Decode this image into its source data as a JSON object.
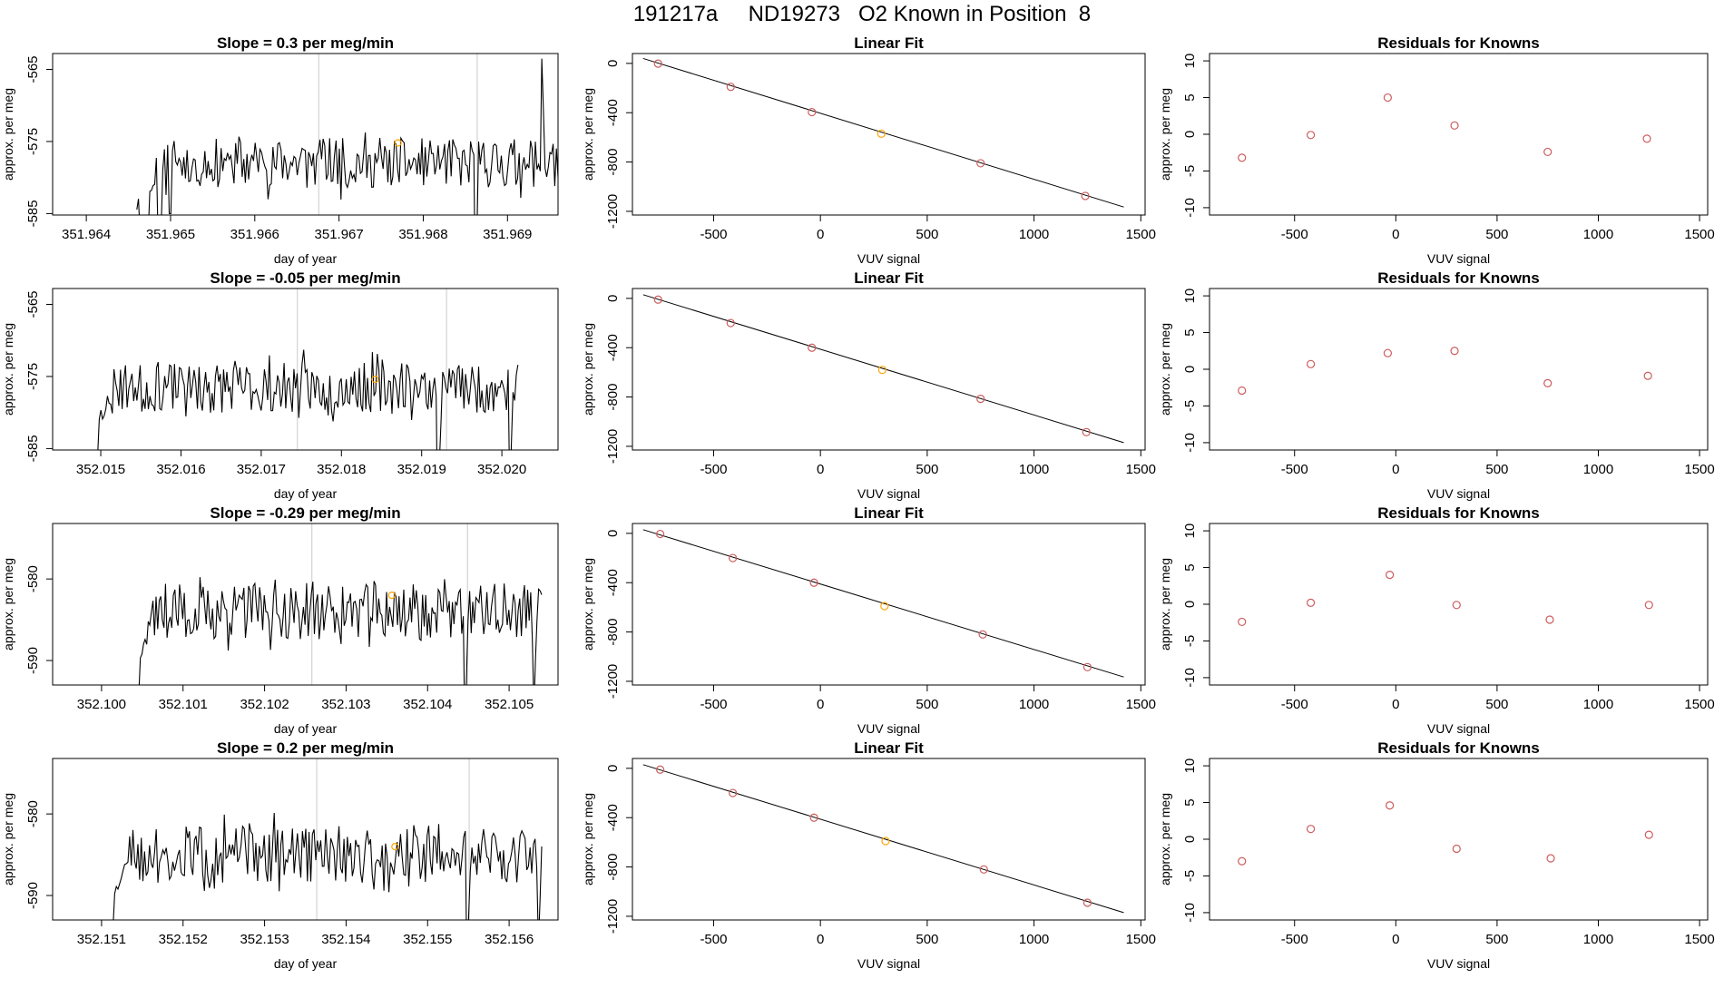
{
  "page_title": "191217a     ND19273   O2 Known in Position  8",
  "colors": {
    "trace": "#000000",
    "known_point": "#cd5c5c",
    "current_point": "#ffa500",
    "marker_line": "#d3d3d3",
    "fit_line": "#000000"
  },
  "chart_data": [
    {
      "row": 1,
      "type": "line",
      "title": "Slope =  0.3  per meg/min",
      "xlabel": "day of year",
      "ylabel": "approx. per meg",
      "xlim": [
        351.9636,
        351.9696
      ],
      "ylim": [
        -585.2,
        -562.8
      ],
      "xticks": [
        "351.964",
        "351.965",
        "351.966",
        "351.967",
        "351.968",
        "351.969"
      ],
      "xtick_values": [
        351.964,
        351.965,
        351.966,
        351.967,
        351.968,
        351.969
      ],
      "yticks": [
        "-565",
        "-575",
        "-585"
      ],
      "ytick_values": [
        -565,
        -575,
        -585
      ],
      "x_start": 351.9646,
      "x_end": 351.9696,
      "markers": [
        351.96676,
        351.96864
      ],
      "highlight": {
        "x": 351.9677,
        "y": -575.2
      },
      "y_base": -578.0,
      "gaps": [
        [
          351.96462,
          351.96475,
          -588
        ],
        [
          351.96485,
          351.9649,
          -587
        ],
        [
          351.96498,
          351.96502,
          -585
        ]
      ],
      "spikes": [
        [
          351.96862,
          -597
        ],
        [
          351.9694,
          -563.5
        ]
      ],
      "seed": 11
    },
    {
      "row": 2,
      "type": "line",
      "title": "Slope =  -0.05  per meg/min",
      "xlabel": "day of year",
      "ylabel": "approx. per meg",
      "xlim": [
        352.0144,
        352.0207
      ],
      "ylim": [
        -585.2,
        -562.8
      ],
      "xticks": [
        "352.015",
        "352.016",
        "352.017",
        "352.018",
        "352.019",
        "352.020"
      ],
      "xtick_values": [
        352.015,
        352.016,
        352.017,
        352.018,
        352.019,
        352.02
      ],
      "yticks": [
        "-565",
        "-575",
        "-585"
      ],
      "ytick_values": [
        -565,
        -575,
        -585
      ],
      "x_start": 352.0149,
      "x_end": 352.0202,
      "markers": [
        352.01745,
        352.01931
      ],
      "highlight": {
        "x": 352.01842,
        "y": -575.4
      },
      "y_base": -576.5,
      "gaps": [
        [
          352.0149,
          352.01498,
          -586
        ]
      ],
      "spikes": [
        [
          352.0192,
          -597
        ],
        [
          352.0201,
          -592
        ]
      ],
      "seed": 23
    },
    {
      "row": 3,
      "type": "line",
      "title": "Slope =  -0.29  per meg/min",
      "xlabel": "day of year",
      "ylabel": "approx. per meg",
      "xlim": [
        352.0994,
        352.1056
      ],
      "ylim": [
        -593.0,
        -573.2
      ],
      "xticks": [
        "352.100",
        "352.101",
        "352.102",
        "352.103",
        "352.104",
        "352.105"
      ],
      "xtick_values": [
        352.1,
        352.101,
        352.102,
        352.103,
        352.104,
        352.105
      ],
      "yticks": [
        "-580",
        "-590"
      ],
      "ytick_values": [
        -580,
        -590
      ],
      "x_start": 352.1004,
      "x_end": 352.1054,
      "markers": [
        352.10258,
        352.10449
      ],
      "highlight": {
        "x": 352.10356,
        "y": -582.0
      },
      "y_base": -584.0,
      "gaps": [
        [
          352.1004,
          352.10047,
          -594
        ]
      ],
      "spikes": [
        [
          352.10446,
          -600
        ],
        [
          352.1053,
          -596
        ]
      ],
      "seed": 37
    },
    {
      "row": 4,
      "type": "line",
      "title": "Slope =  0.2  per meg/min",
      "xlabel": "day of year",
      "ylabel": "approx. per meg",
      "xlim": [
        352.1504,
        352.1566
      ],
      "ylim": [
        -593.0,
        -573.2
      ],
      "xticks": [
        "352.151",
        "352.152",
        "352.153",
        "352.154",
        "352.155",
        "352.156"
      ],
      "xtick_values": [
        352.151,
        352.152,
        352.153,
        352.154,
        352.155,
        352.156
      ],
      "yticks": [
        "-580",
        "-590"
      ],
      "ytick_values": [
        -580,
        -590
      ],
      "x_start": 352.1511,
      "x_end": 352.1564,
      "markers": [
        352.15364,
        352.15551
      ],
      "highlight": {
        "x": 352.1546,
        "y": -584.0
      },
      "y_base": -585.0,
      "gaps": [
        [
          352.15108,
          352.15115,
          -594
        ]
      ],
      "spikes": [
        [
          352.15548,
          -600
        ],
        [
          352.15635,
          -596
        ]
      ],
      "seed": 51
    },
    {
      "row": 1,
      "type": "scatter",
      "title": "Linear Fit",
      "xlabel": "VUV signal",
      "ylabel": "approx. per meg",
      "xlim": [
        -880,
        1520
      ],
      "ylim": [
        -1230,
        80
      ],
      "xticks": [
        "-500",
        "0",
        "500",
        "1000",
        "1500"
      ],
      "xtick_values": [
        -500,
        0,
        500,
        1000,
        1500
      ],
      "yticks": [
        "0",
        "-400",
        "-800",
        "-1200"
      ],
      "ytick_values": [
        0,
        -400,
        -800,
        -1200
      ],
      "fit_line": [
        [
          -830,
          40
        ],
        [
          1420,
          -1165
        ]
      ],
      "points": [
        {
          "x": -760,
          "y": -2,
          "kind": "known"
        },
        {
          "x": -420,
          "y": -190,
          "kind": "known"
        },
        {
          "x": -40,
          "y": -395,
          "kind": "known"
        },
        {
          "x": 285,
          "y": -570,
          "kind": "current"
        },
        {
          "x": 750,
          "y": -810,
          "kind": "known"
        },
        {
          "x": 1240,
          "y": -1075,
          "kind": "known"
        }
      ]
    },
    {
      "row": 2,
      "type": "scatter",
      "title": "Linear Fit",
      "xlabel": "VUV signal",
      "ylabel": "approx. per meg",
      "xlim": [
        -880,
        1520
      ],
      "ylim": [
        -1230,
        80
      ],
      "xticks": [
        "-500",
        "0",
        "500",
        "1000",
        "1500"
      ],
      "xtick_values": [
        -500,
        0,
        500,
        1000,
        1500
      ],
      "yticks": [
        "0",
        "-400",
        "-800",
        "-1200"
      ],
      "ytick_values": [
        0,
        -400,
        -800,
        -1200
      ],
      "fit_line": [
        [
          -830,
          30
        ],
        [
          1420,
          -1170
        ]
      ],
      "points": [
        {
          "x": -760,
          "y": -10,
          "kind": "known"
        },
        {
          "x": -420,
          "y": -200,
          "kind": "known"
        },
        {
          "x": -40,
          "y": -400,
          "kind": "known"
        },
        {
          "x": 290,
          "y": -580,
          "kind": "current"
        },
        {
          "x": 750,
          "y": -815,
          "kind": "known"
        },
        {
          "x": 1245,
          "y": -1085,
          "kind": "known"
        }
      ]
    },
    {
      "row": 3,
      "type": "scatter",
      "title": "Linear Fit",
      "xlabel": "VUV signal",
      "ylabel": "approx. per meg",
      "xlim": [
        -880,
        1520
      ],
      "ylim": [
        -1230,
        80
      ],
      "xticks": [
        "-500",
        "0",
        "500",
        "1000",
        "1500"
      ],
      "xtick_values": [
        -500,
        0,
        500,
        1000,
        1500
      ],
      "yticks": [
        "0",
        "-400",
        "-800",
        "-1200"
      ],
      "ytick_values": [
        0,
        -400,
        -800,
        -1200
      ],
      "fit_line": [
        [
          -830,
          30
        ],
        [
          1420,
          -1165
        ]
      ],
      "points": [
        {
          "x": -750,
          "y": -5,
          "kind": "known"
        },
        {
          "x": -410,
          "y": -200,
          "kind": "known"
        },
        {
          "x": -30,
          "y": -400,
          "kind": "known"
        },
        {
          "x": 300,
          "y": -590,
          "kind": "current"
        },
        {
          "x": 760,
          "y": -820,
          "kind": "known"
        },
        {
          "x": 1250,
          "y": -1085,
          "kind": "known"
        }
      ]
    },
    {
      "row": 4,
      "type": "scatter",
      "title": "Linear Fit",
      "xlabel": "VUV signal",
      "ylabel": "approx. per meg",
      "xlim": [
        -880,
        1520
      ],
      "ylim": [
        -1230,
        80
      ],
      "xticks": [
        "-500",
        "0",
        "500",
        "1000",
        "1500"
      ],
      "xtick_values": [
        -500,
        0,
        500,
        1000,
        1500
      ],
      "yticks": [
        "0",
        "-400",
        "-800",
        "-1200"
      ],
      "ytick_values": [
        0,
        -400,
        -800,
        -1200
      ],
      "fit_line": [
        [
          -830,
          30
        ],
        [
          1420,
          -1170
        ]
      ],
      "points": [
        {
          "x": -750,
          "y": -10,
          "kind": "known"
        },
        {
          "x": -410,
          "y": -200,
          "kind": "known"
        },
        {
          "x": -30,
          "y": -400,
          "kind": "known"
        },
        {
          "x": 305,
          "y": -590,
          "kind": "current"
        },
        {
          "x": 765,
          "y": -820,
          "kind": "known"
        },
        {
          "x": 1250,
          "y": -1090,
          "kind": "known"
        }
      ]
    },
    {
      "row": 1,
      "type": "scatter",
      "title": "Residuals for Knowns",
      "xlabel": "VUV signal",
      "ylabel": "approx. per meg",
      "xlim": [
        -920,
        1540
      ],
      "ylim": [
        -11,
        11
      ],
      "xticks": [
        "-500",
        "0",
        "500",
        "1000",
        "1500"
      ],
      "xtick_values": [
        -500,
        0,
        500,
        1000,
        1500
      ],
      "yticks": [
        "10",
        "5",
        "0",
        "-5",
        "-10"
      ],
      "ytick_values": [
        10,
        5,
        0,
        -5,
        -10
      ],
      "points": [
        {
          "x": -760,
          "y": -3.2
        },
        {
          "x": -420,
          "y": -0.1
        },
        {
          "x": -40,
          "y": 5.0
        },
        {
          "x": 290,
          "y": 1.2
        },
        {
          "x": 750,
          "y": -2.4
        },
        {
          "x": 1240,
          "y": -0.6
        }
      ]
    },
    {
      "row": 2,
      "type": "scatter",
      "title": "Residuals for Knowns",
      "xlabel": "VUV signal",
      "ylabel": "approx. per meg",
      "xlim": [
        -920,
        1540
      ],
      "ylim": [
        -11,
        11
      ],
      "xticks": [
        "-500",
        "0",
        "500",
        "1000",
        "1500"
      ],
      "xtick_values": [
        -500,
        0,
        500,
        1000,
        1500
      ],
      "yticks": [
        "10",
        "5",
        "0",
        "-5",
        "-10"
      ],
      "ytick_values": [
        10,
        5,
        0,
        -5,
        -10
      ],
      "points": [
        {
          "x": -760,
          "y": -2.9
        },
        {
          "x": -420,
          "y": 0.7
        },
        {
          "x": -40,
          "y": 2.2
        },
        {
          "x": 290,
          "y": 2.5
        },
        {
          "x": 750,
          "y": -1.9
        },
        {
          "x": 1245,
          "y": -0.9
        }
      ]
    },
    {
      "row": 3,
      "type": "scatter",
      "title": "Residuals for Knowns",
      "xlabel": "VUV signal",
      "ylabel": "approx. per meg",
      "xlim": [
        -920,
        1540
      ],
      "ylim": [
        -11,
        11
      ],
      "xticks": [
        "-500",
        "0",
        "500",
        "1000",
        "1500"
      ],
      "xtick_values": [
        -500,
        0,
        500,
        1000,
        1500
      ],
      "yticks": [
        "10",
        "5",
        "0",
        "-5",
        "-10"
      ],
      "ytick_values": [
        10,
        5,
        0,
        -5,
        -10
      ],
      "points": [
        {
          "x": -760,
          "y": -2.4
        },
        {
          "x": -420,
          "y": 0.2
        },
        {
          "x": -30,
          "y": 4.0
        },
        {
          "x": 300,
          "y": -0.1
        },
        {
          "x": 760,
          "y": -2.1
        },
        {
          "x": 1250,
          "y": -0.1
        }
      ]
    },
    {
      "row": 4,
      "type": "scatter",
      "title": "Residuals for Knowns",
      "xlabel": "VUV signal",
      "ylabel": "approx. per meg",
      "xlim": [
        -920,
        1540
      ],
      "ylim": [
        -11,
        11
      ],
      "xticks": [
        "-500",
        "0",
        "500",
        "1000",
        "1500"
      ],
      "xtick_values": [
        -500,
        0,
        500,
        1000,
        1500
      ],
      "yticks": [
        "10",
        "5",
        "0",
        "-5",
        "-10"
      ],
      "ytick_values": [
        10,
        5,
        0,
        -5,
        -10
      ],
      "points": [
        {
          "x": -760,
          "y": -3.0
        },
        {
          "x": -420,
          "y": 1.4
        },
        {
          "x": -30,
          "y": 4.6
        },
        {
          "x": 300,
          "y": -1.3
        },
        {
          "x": 765,
          "y": -2.6
        },
        {
          "x": 1250,
          "y": 0.6
        }
      ]
    }
  ]
}
